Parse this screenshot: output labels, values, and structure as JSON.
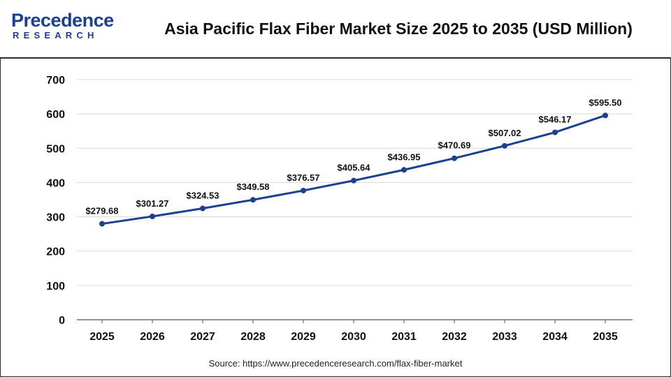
{
  "header": {
    "logo_top": "Precedence",
    "logo_bottom": "RESEARCH",
    "title": "Asia Pacific Flax Fiber Market Size 2025 to 2035 (USD Million)"
  },
  "footer": {
    "source": "Source: https://www.precedenceresearch.com/flax-fiber-market"
  },
  "colors": {
    "line": "#1b3f91",
    "marker": "#1b3f91",
    "grid": "#d9d9d9"
  },
  "chart_data": {
    "type": "line",
    "title": "Asia Pacific Flax Fiber Market Size 2025 to 2035 (USD Million)",
    "xlabel": "",
    "ylabel": "",
    "categories": [
      "2025",
      "2026",
      "2027",
      "2028",
      "2029",
      "2030",
      "2031",
      "2032",
      "2033",
      "2034",
      "2035"
    ],
    "series": [
      {
        "values": [
          279.68,
          301.27,
          324.53,
          349.58,
          376.57,
          405.64,
          436.95,
          470.69,
          507.02,
          546.17,
          595.5
        ],
        "labels": [
          "$279.68",
          "$301.27",
          "$324.53",
          "$349.58",
          "$376.57",
          "$405.64",
          "$436.95",
          "$470.69",
          "$507.02",
          "$546.17",
          "$595.50"
        ]
      }
    ],
    "ylim": [
      0,
      700
    ],
    "yticks": [
      "0",
      "100",
      "200",
      "300",
      "400",
      "500",
      "600",
      "700"
    ],
    "grid": true,
    "legend": "none"
  }
}
